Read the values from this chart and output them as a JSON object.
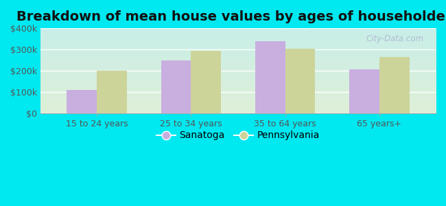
{
  "title": "Breakdown of mean house values by ages of householders",
  "categories": [
    "15 to 24 years",
    "25 to 34 years",
    "35 to 64 years",
    "65 years+"
  ],
  "sanatoga_values": [
    110000,
    250000,
    340000,
    205000
  ],
  "pennsylvania_values": [
    200000,
    295000,
    305000,
    265000
  ],
  "sanatoga_color": "#c9aee0",
  "pennsylvania_color": "#cdd49a",
  "background_outer": "#00e8f0",
  "grad_top": "#c8eee8",
  "grad_bottom": "#dff0d8",
  "ylim": [
    0,
    400000
  ],
  "yticks": [
    0,
    100000,
    200000,
    300000,
    400000
  ],
  "ytick_labels": [
    "$0",
    "$100k",
    "$200k",
    "$300k",
    "$400k"
  ],
  "bar_width": 0.32,
  "legend_sanatoga": "Sanatoga",
  "legend_pennsylvania": "Pennsylvania",
  "title_fontsize": 14,
  "watermark": "City-Data.com",
  "grid_color": "#ffffff",
  "tick_label_color": "#555555",
  "title_color": "#111111"
}
